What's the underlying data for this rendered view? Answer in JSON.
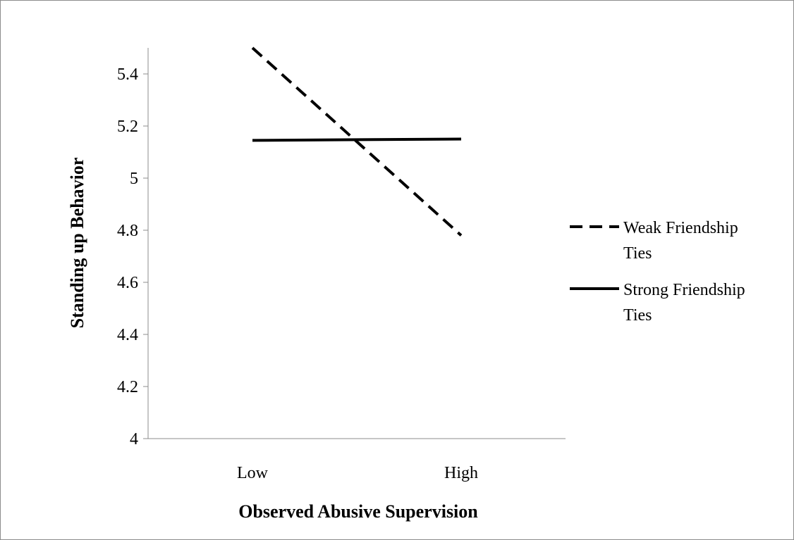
{
  "chart_data": {
    "type": "line",
    "title": "",
    "xlabel": "Observed Abusive Supervision",
    "ylabel": "Standing up Behavior",
    "categories": [
      "Low",
      "High"
    ],
    "ylim": [
      4,
      5.5
    ],
    "yticks": [
      "4",
      "4.2",
      "4.4",
      "4.6",
      "4.8",
      "5",
      "5.2",
      "5.4"
    ],
    "grid": false,
    "legend_position": "right",
    "series": [
      {
        "name": "Weak Friendship Ties",
        "name_lines": [
          "Weak Friendship",
          "Ties"
        ],
        "values": [
          5.5,
          4.78
        ],
        "style": "dashed",
        "color": "#000000"
      },
      {
        "name": "Strong Friendship Ties",
        "name_lines": [
          "Strong Friendship",
          "Ties"
        ],
        "values": [
          5.145,
          5.15
        ],
        "style": "solid",
        "color": "#000000"
      }
    ]
  }
}
